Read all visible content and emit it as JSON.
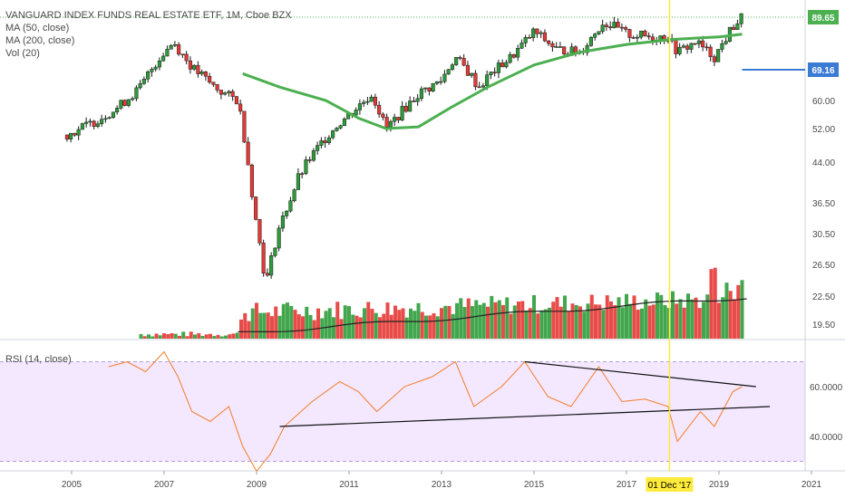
{
  "legend": {
    "title": "VANGUARD INDEX FUNDS REAL ESTATE ETF, 1M, Cboe BZX",
    "ma50": "MA (50, close)",
    "ma200": "MA (200, close)",
    "vol": "Vol (20)",
    "rsi": "RSI (14, close)"
  },
  "badges": {
    "last_price": "89.65",
    "level_price": "69.16",
    "cursor_date": "01 Dec '17"
  },
  "colors": {
    "up": "#2e9c3a",
    "down": "#e53935",
    "ma_green": "#4caf50",
    "rsi_line": "#f57c28",
    "rsi_band": "#f3e8ff",
    "cursor": "#ffeb3b",
    "level_line": "#3a7bd5",
    "last_badge": "#4caf50"
  },
  "chart_data": [
    {
      "type": "candlestick",
      "title": "VANGUARD INDEX FUNDS REAL ESTATE ETF, 1M, Cboe BZX",
      "price_axis_ticks": [
        "60.00",
        "52.00",
        "44.00",
        "36.50",
        "30.50",
        "26.50",
        "22.50",
        "19.50"
      ],
      "time_axis_ticks": [
        "2005",
        "2007",
        "2009",
        "2011",
        "2013",
        "2015",
        "2017",
        "2019",
        "2021"
      ],
      "close_path": [
        {
          "x": 2004.9,
          "y": 50.5
        },
        {
          "x": 2005.5,
          "y": 54
        },
        {
          "x": 2006.0,
          "y": 58
        },
        {
          "x": 2006.5,
          "y": 64
        },
        {
          "x": 2007.0,
          "y": 76
        },
        {
          "x": 2007.2,
          "y": 80
        },
        {
          "x": 2007.6,
          "y": 70
        },
        {
          "x": 2008.0,
          "y": 65
        },
        {
          "x": 2008.3,
          "y": 62
        },
        {
          "x": 2008.6,
          "y": 60
        },
        {
          "x": 2008.8,
          "y": 45
        },
        {
          "x": 2009.0,
          "y": 32
        },
        {
          "x": 2009.2,
          "y": 24
        },
        {
          "x": 2009.5,
          "y": 32
        },
        {
          "x": 2009.9,
          "y": 41
        },
        {
          "x": 2010.5,
          "y": 50
        },
        {
          "x": 2011.0,
          "y": 56
        },
        {
          "x": 2011.5,
          "y": 62
        },
        {
          "x": 2011.8,
          "y": 52
        },
        {
          "x": 2012.5,
          "y": 62
        },
        {
          "x": 2013.0,
          "y": 66
        },
        {
          "x": 2013.3,
          "y": 74
        },
        {
          "x": 2013.8,
          "y": 64
        },
        {
          "x": 2014.5,
          "y": 74
        },
        {
          "x": 2015.0,
          "y": 84
        },
        {
          "x": 2015.5,
          "y": 77
        },
        {
          "x": 2016.0,
          "y": 76
        },
        {
          "x": 2016.5,
          "y": 88
        },
        {
          "x": 2017.0,
          "y": 83
        },
        {
          "x": 2017.5,
          "y": 82
        },
        {
          "x": 2017.9,
          "y": 82
        },
        {
          "x": 2018.1,
          "y": 76
        },
        {
          "x": 2018.5,
          "y": 80
        },
        {
          "x": 2018.9,
          "y": 74
        },
        {
          "x": 2019.3,
          "y": 86
        },
        {
          "x": 2019.5,
          "y": 89.65
        }
      ],
      "ma50": [
        {
          "x": 2008.7,
          "y": 68
        },
        {
          "x": 2009.5,
          "y": 64
        },
        {
          "x": 2010.5,
          "y": 60
        },
        {
          "x": 2011.2,
          "y": 55
        },
        {
          "x": 2011.8,
          "y": 52
        },
        {
          "x": 2012.5,
          "y": 52.5
        },
        {
          "x": 2013.2,
          "y": 58
        },
        {
          "x": 2014.0,
          "y": 64
        },
        {
          "x": 2015.0,
          "y": 71
        },
        {
          "x": 2016.0,
          "y": 76
        },
        {
          "x": 2017.0,
          "y": 79
        },
        {
          "x": 2018.0,
          "y": 81
        },
        {
          "x": 2019.0,
          "y": 82
        },
        {
          "x": 2019.5,
          "y": 83
        }
      ],
      "horizontal_level": 69.16,
      "last_price": 89.65
    },
    {
      "type": "bar",
      "title": "Vol (20)",
      "note": "monthly volume bars with 20-period average line"
    },
    {
      "type": "line",
      "title": "RSI (14, close)",
      "ylim": [
        25,
        80
      ],
      "y_ticks": [
        "60.0000",
        "40.0000"
      ],
      "band": [
        30,
        70
      ],
      "series": [
        {
          "values": [
            {
              "x": 2005.8,
              "y": 68
            },
            {
              "x": 2006.2,
              "y": 70
            },
            {
              "x": 2006.6,
              "y": 66
            },
            {
              "x": 2007.0,
              "y": 74
            },
            {
              "x": 2007.3,
              "y": 64
            },
            {
              "x": 2007.6,
              "y": 50
            },
            {
              "x": 2008.0,
              "y": 46
            },
            {
              "x": 2008.4,
              "y": 52
            },
            {
              "x": 2008.7,
              "y": 36
            },
            {
              "x": 2009.0,
              "y": 26
            },
            {
              "x": 2009.3,
              "y": 33
            },
            {
              "x": 2009.6,
              "y": 44
            },
            {
              "x": 2010.2,
              "y": 54
            },
            {
              "x": 2010.8,
              "y": 62
            },
            {
              "x": 2011.2,
              "y": 58
            },
            {
              "x": 2011.6,
              "y": 50
            },
            {
              "x": 2012.2,
              "y": 60
            },
            {
              "x": 2012.8,
              "y": 64
            },
            {
              "x": 2013.3,
              "y": 70
            },
            {
              "x": 2013.7,
              "y": 52
            },
            {
              "x": 2014.3,
              "y": 60
            },
            {
              "x": 2014.8,
              "y": 70
            },
            {
              "x": 2015.3,
              "y": 56
            },
            {
              "x": 2015.8,
              "y": 52
            },
            {
              "x": 2016.4,
              "y": 68
            },
            {
              "x": 2016.9,
              "y": 54
            },
            {
              "x": 2017.4,
              "y": 55
            },
            {
              "x": 2017.9,
              "y": 52
            },
            {
              "x": 2018.1,
              "y": 38
            },
            {
              "x": 2018.6,
              "y": 50
            },
            {
              "x": 2018.9,
              "y": 44
            },
            {
              "x": 2019.3,
              "y": 58
            },
            {
              "x": 2019.5,
              "y": 60
            }
          ]
        }
      ],
      "trendlines": [
        {
          "from": {
            "x": 2014.8,
            "y": 70
          },
          "to": {
            "x": 2019.8,
            "y": 60
          }
        },
        {
          "from": {
            "x": 2009.5,
            "y": 44
          },
          "to": {
            "x": 2020.1,
            "y": 52
          }
        }
      ]
    }
  ]
}
